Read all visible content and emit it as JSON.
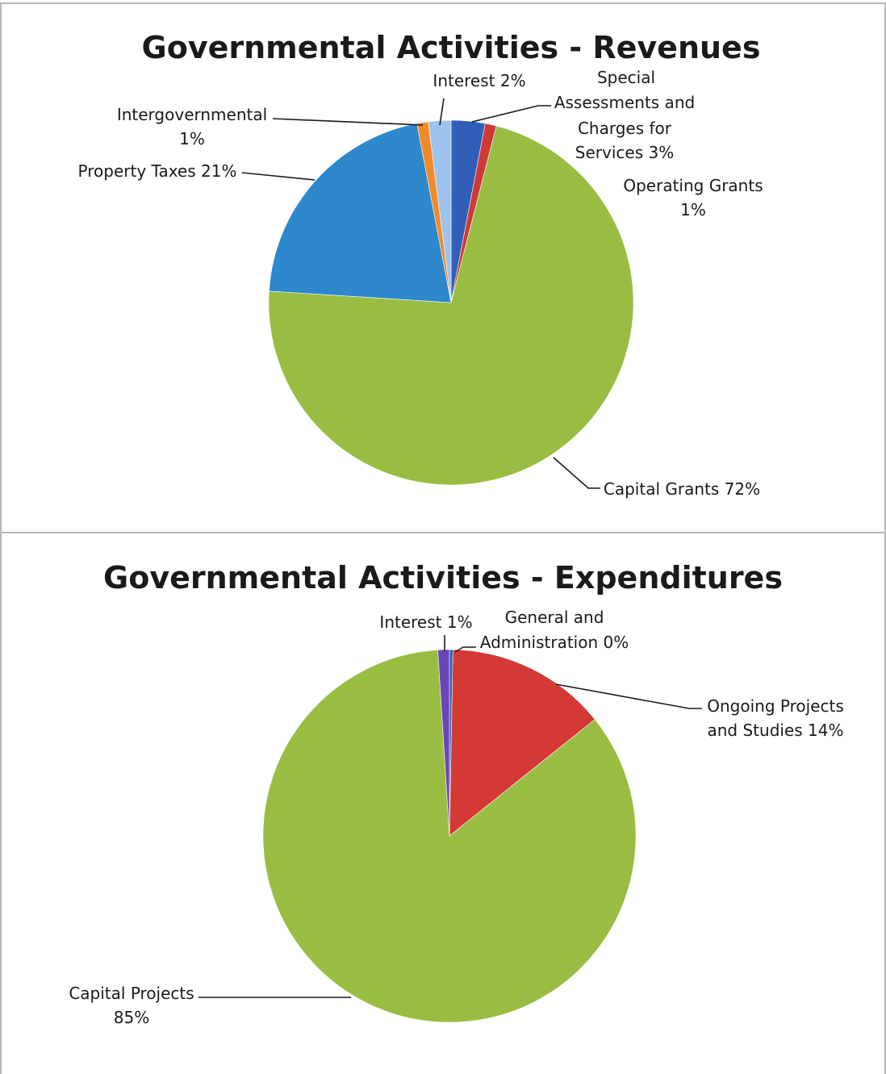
{
  "chart_data": [
    {
      "type": "pie",
      "title": "Governmental Activities - Revenues",
      "slices": [
        {
          "name": "Special Assessments and Charges for Services",
          "value": 3,
          "color": "#2f5fb6"
        },
        {
          "name": "Operating Grants",
          "value": 1,
          "color": "#cf3a36"
        },
        {
          "name": "Capital Grants",
          "value": 72,
          "color": "#99bd42"
        },
        {
          "name": "Property Taxes",
          "value": 21,
          "color": "#2d88cc"
        },
        {
          "name": "Intergovernmental",
          "value": 1,
          "color": "#f08a2a"
        },
        {
          "name": "Interest",
          "value": 2,
          "color": "#9ec2ee"
        }
      ],
      "labels": {
        "interest": "Interest 2%",
        "special": [
          "Special",
          "Assessments and",
          "Charges for",
          "Services 3%"
        ],
        "operating": [
          "Operating Grants",
          "1%"
        ],
        "capital_grants": "Capital Grants 72%",
        "property_taxes": "Property Taxes 21%",
        "intergovernmental": [
          "Intergovernmental",
          "1%"
        ]
      }
    },
    {
      "type": "pie",
      "title": "Governmental Activities - Expenditures",
      "slices": [
        {
          "name": "General and Administration",
          "value": 0.3,
          "color": "#2f5fb6"
        },
        {
          "name": "Ongoing Projects and Studies",
          "value": 14,
          "color": "#d43a35"
        },
        {
          "name": "Capital Projects",
          "value": 85,
          "color": "#99bd42"
        },
        {
          "name": "Interest",
          "value": 1,
          "color": "#6a47b8"
        }
      ],
      "labels": {
        "interest": "Interest 1%",
        "general": [
          "General and",
          "Administration 0%"
        ],
        "ongoing": [
          "Ongoing Projects",
          "and Studies 14%"
        ],
        "capital_projects": [
          "Capital Projects",
          "85%"
        ]
      }
    }
  ]
}
